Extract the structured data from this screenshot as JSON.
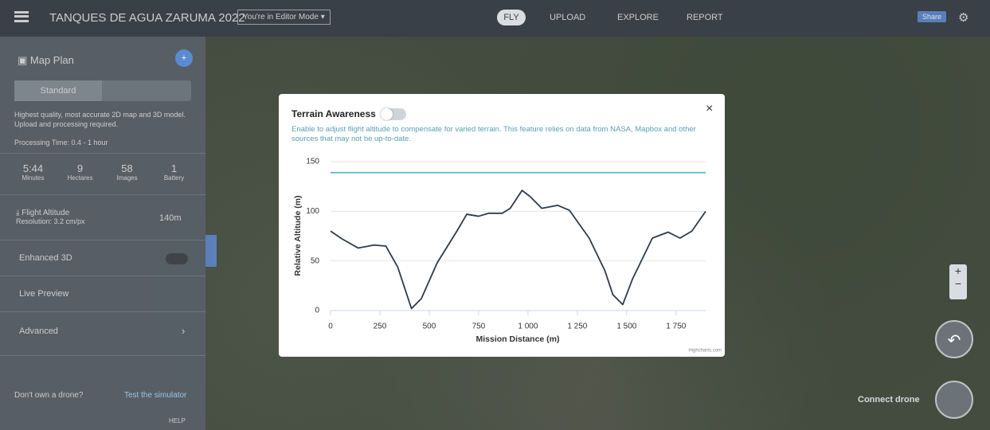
{
  "header": {
    "title": "TANQUES DE AGUA ZARUMA 2022",
    "mode": "You're in Editor Mode",
    "nav": [
      "FLY",
      "UPLOAD",
      "EXPLORE",
      "REPORT"
    ],
    "share": "Share"
  },
  "sidebar": {
    "title": "Map Plan",
    "tabs": [
      "Standard"
    ],
    "description": "Highest quality, most accurate 2D map and 3D model. Upload and processing required.",
    "processing": "Processing Time: 0.4 - 1 hour",
    "stats": [
      {
        "value": "5:44",
        "label": "Minutes"
      },
      {
        "value": "9",
        "label": "Hectares"
      },
      {
        "value": "58",
        "label": "Images"
      },
      {
        "value": "1",
        "label": "Battery"
      }
    ],
    "altitude": {
      "label": "Flight Altitude",
      "resolution": "Resolution: 3.2 cm/px",
      "value": "140m"
    },
    "options": [
      "Enhanced 3D",
      "Live Preview",
      "Advanced"
    ],
    "footer": {
      "question": "Don't own a drone?",
      "link": "Test the simulator",
      "help": "HELP"
    }
  },
  "map": {
    "connect": "Connect drone",
    "zoom_in": "+",
    "zoom_out": "−"
  },
  "modal": {
    "title": "Terrain Awareness",
    "close": "×",
    "description": "Enable to adjust flight altitude to compensate for varied terrain. This feature relies on data from NASA, Mapbox and other sources that may not be up-to-date.",
    "credit": "Highcharts.com"
  },
  "chart_data": {
    "type": "line",
    "xlabel": "Mission Distance (m)",
    "ylabel": "Relative Altitude (m)",
    "xlim": [
      0,
      1900
    ],
    "ylim": [
      0,
      150
    ],
    "yticks": [
      0,
      50,
      100,
      150
    ],
    "xticks": [
      0,
      250,
      500,
      750,
      {
        "value": 1000,
        "label": "1 000"
      },
      {
        "value": 1250,
        "label": "1 250"
      },
      {
        "value": 1500,
        "label": "1 500"
      },
      {
        "value": 1750,
        "label": "1 750"
      }
    ],
    "grid": true,
    "series": [
      {
        "color": "#5bb6c6",
        "x": [
          0,
          1900
        ],
        "values": [
          139,
          139
        ]
      },
      {
        "color": "#2f3b4a",
        "x": [
          0,
          60,
          140,
          220,
          280,
          340,
          410,
          460,
          540,
          640,
          690,
          750,
          800,
          870,
          910,
          970,
          1010,
          1070,
          1150,
          1210,
          1310,
          1390,
          1430,
          1480,
          1530,
          1630,
          1710,
          1770,
          1830,
          1900
        ],
        "values": [
          80,
          72,
          63,
          66,
          65,
          44,
          2,
          12,
          48,
          80,
          97,
          95,
          98,
          98,
          103,
          121,
          115,
          103,
          106,
          101,
          73,
          40,
          16,
          6,
          32,
          73,
          79,
          73,
          80,
          100
        ]
      }
    ]
  }
}
